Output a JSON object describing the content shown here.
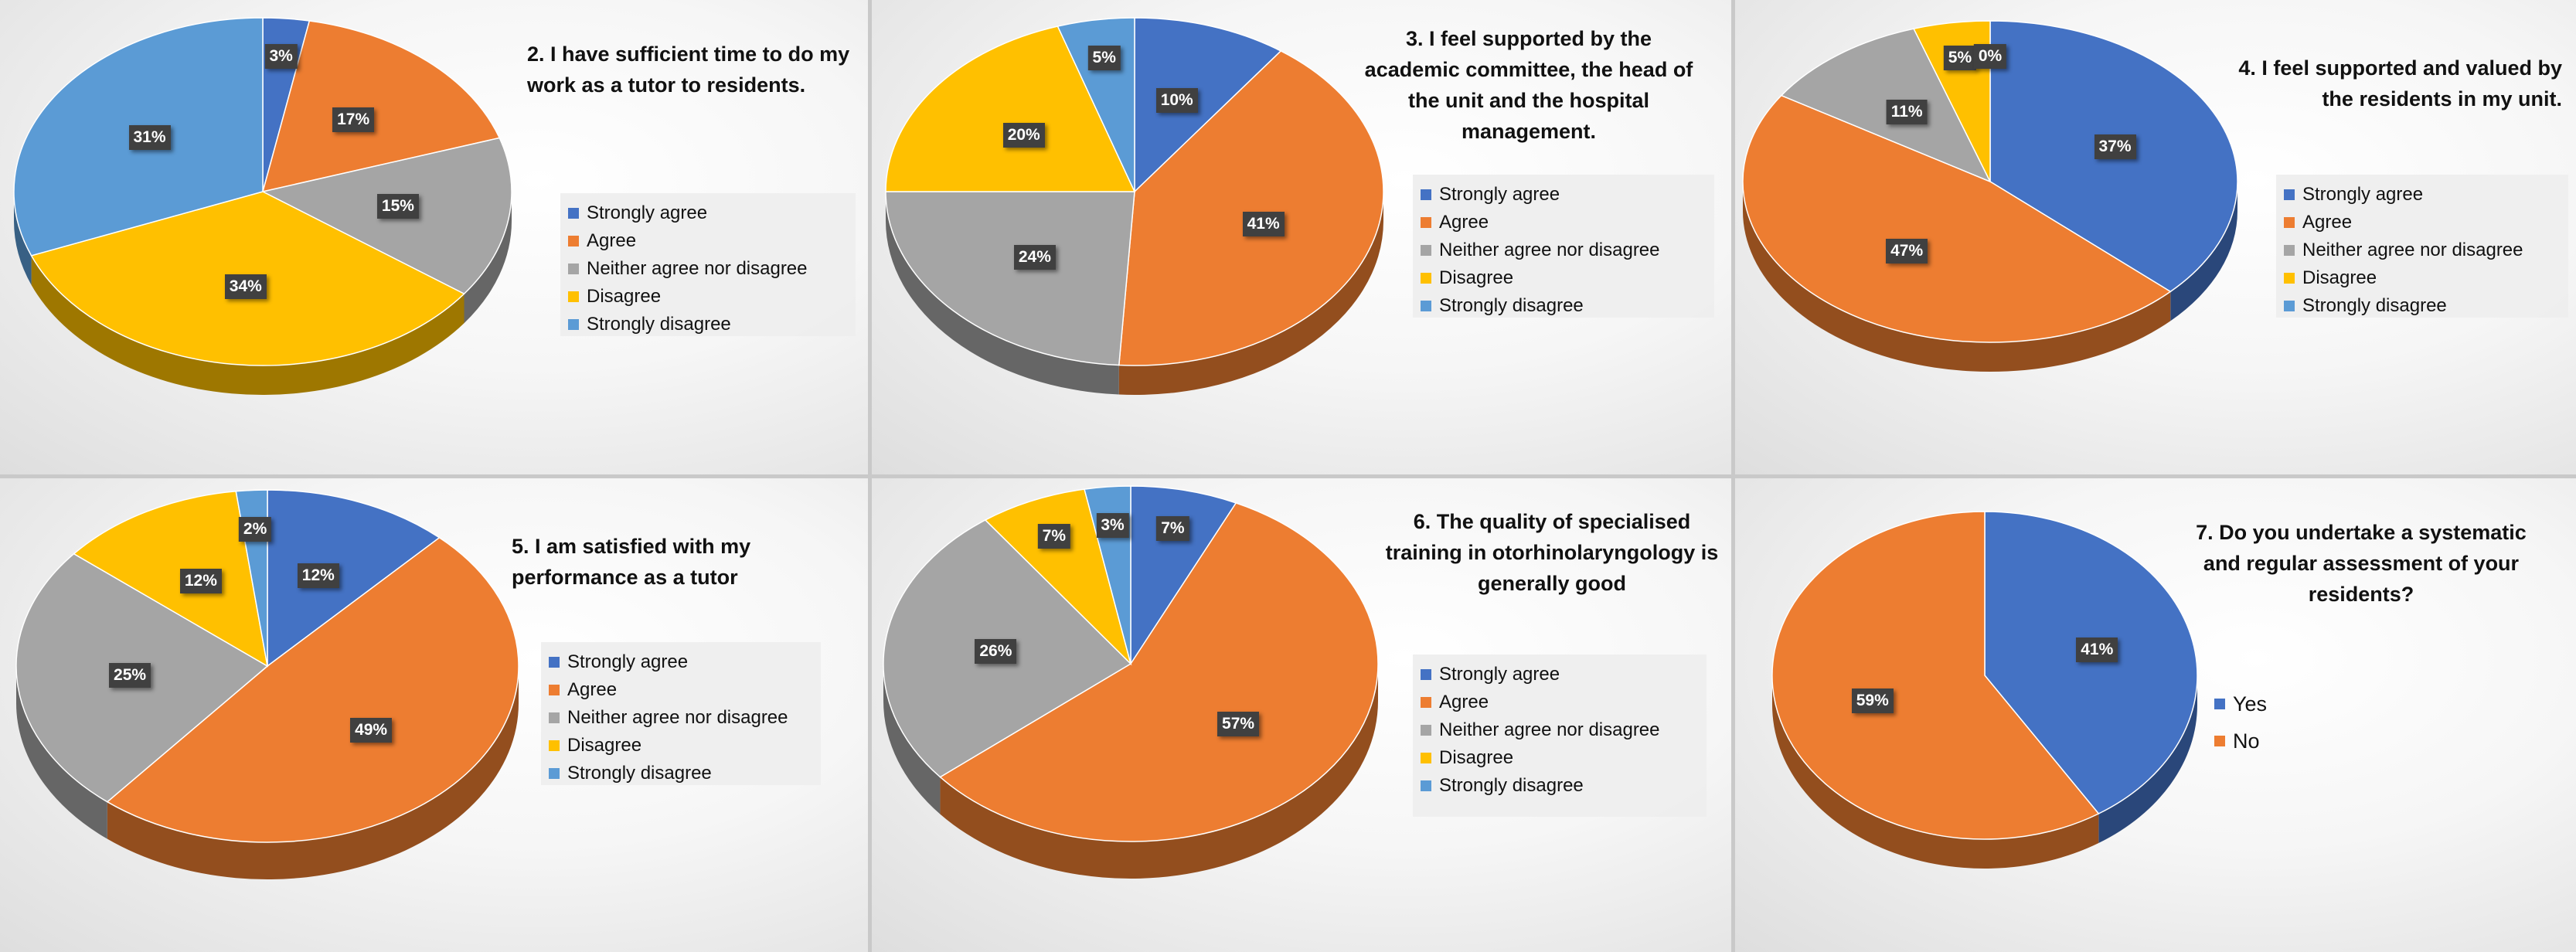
{
  "chart_data": [
    {
      "type": "pie",
      "title": "2. I have sufficient time to do my work as a tutor to residents.",
      "categories": [
        "Strongly agree",
        "Agree",
        "Neither agree nor disagree",
        "Disagree",
        "Strongly disagree"
      ],
      "values": [
        3,
        17,
        15,
        34,
        31
      ],
      "labels": [
        "3%",
        "17%",
        "15%",
        "34%",
        "31%"
      ],
      "colors": [
        "#4472C4",
        "#ED7D31",
        "#A5A5A5",
        "#FFC000",
        "#5B9BD5"
      ],
      "legend": "right"
    },
    {
      "type": "pie",
      "title": "3. I feel supported by the academic committee, the head of the unit and the hospital management.",
      "categories": [
        "Strongly agree",
        "Agree",
        "Neither agree nor disagree",
        "Disagree",
        "Strongly disagree"
      ],
      "values": [
        10,
        41,
        24,
        20,
        5
      ],
      "labels": [
        "10%",
        "41%",
        "24%",
        "20%",
        "5%"
      ],
      "colors": [
        "#4472C4",
        "#ED7D31",
        "#A5A5A5",
        "#FFC000",
        "#5B9BD5"
      ],
      "legend": "right"
    },
    {
      "type": "pie",
      "title": "4. I feel supported and valued by the residents in my unit.",
      "categories": [
        "Strongly agree",
        "Agree",
        "Neither agree nor disagree",
        "Disagree",
        "Strongly disagree"
      ],
      "values": [
        37,
        47,
        11,
        5,
        0
      ],
      "labels": [
        "37%",
        "47%",
        "11%",
        "5%",
        "0%"
      ],
      "colors": [
        "#4472C4",
        "#ED7D31",
        "#A5A5A5",
        "#FFC000",
        "#5B9BD5"
      ],
      "legend": "right"
    },
    {
      "type": "pie",
      "title": "5. I am satisfied with my performance as a tutor",
      "categories": [
        "Strongly agree",
        "Agree",
        "Neither agree nor disagree",
        "Disagree",
        "Strongly disagree"
      ],
      "values": [
        12,
        49,
        25,
        12,
        2
      ],
      "labels": [
        "12%",
        "49%",
        "25%",
        "12%",
        "2%"
      ],
      "colors": [
        "#4472C4",
        "#ED7D31",
        "#A5A5A5",
        "#FFC000",
        "#5B9BD5"
      ],
      "legend": "right"
    },
    {
      "type": "pie",
      "title": "6. The quality of specialised training in otorhinolaryngology is generally good",
      "categories": [
        "Strongly agree",
        "Agree",
        "Neither agree nor disagree",
        "Disagree",
        "Strongly disagree"
      ],
      "values": [
        7,
        57,
        26,
        7,
        3
      ],
      "labels": [
        "7%",
        "57%",
        "26%",
        "7%",
        "3%"
      ],
      "colors": [
        "#4472C4",
        "#ED7D31",
        "#A5A5A5",
        "#FFC000",
        "#5B9BD5"
      ],
      "legend": "right"
    },
    {
      "type": "pie",
      "title": "7. Do you undertake a systematic and regular assessment of your residents?",
      "categories": [
        "Yes",
        "No"
      ],
      "values": [
        41,
        59
      ],
      "labels": [
        "41%",
        "59%"
      ],
      "colors": [
        "#4472C4",
        "#ED7D31"
      ],
      "legend": "right"
    }
  ]
}
